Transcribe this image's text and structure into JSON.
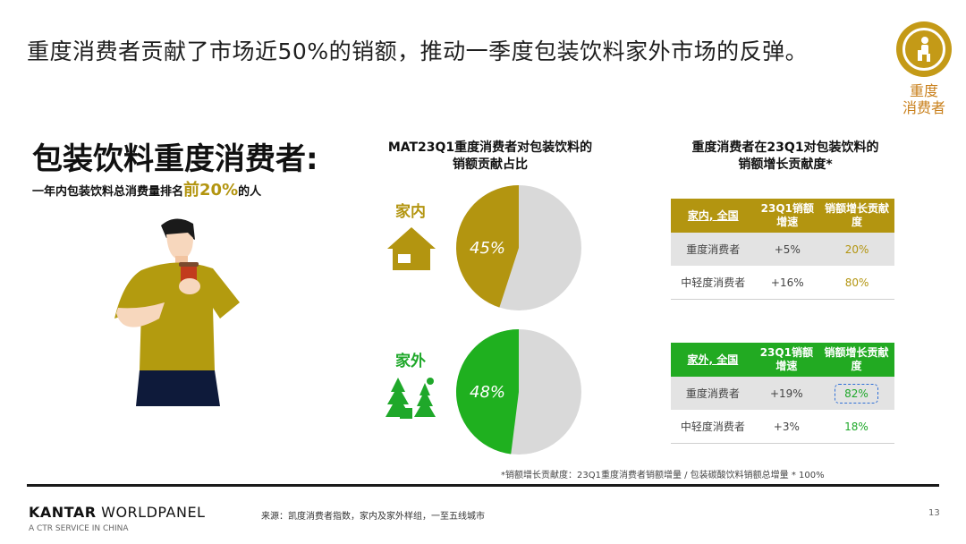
{
  "headline": "重度消费者贡献了市场近50%的销额，推动一季度包装饮料家外市场的反弹。",
  "badge": {
    "icon": "person-seated-icon",
    "label_line1": "重度",
    "label_line2": "消费者",
    "color": "#c49a17"
  },
  "left": {
    "title": "包装饮料重度消费者:",
    "subtitle_pre": "一年内包装饮料总消费量排名",
    "subtitle_highlight": "前20%",
    "subtitle_post": "的人",
    "illustration": "person-drinking-illustration"
  },
  "middle": {
    "title_line1": "MAT23Q1重度消费者对包装饮料的",
    "title_line2": "销额贡献占比",
    "home": {
      "label": "家内",
      "icon": "house-icon",
      "pct_label": "45%",
      "share": 45,
      "color": "#b39510"
    },
    "out": {
      "label": "家外",
      "icon": "outdoor-trees-icon",
      "pct_label": "48%",
      "share": 48,
      "color": "#1fb01f"
    },
    "pie_rest_color": "#d9d9d9"
  },
  "right": {
    "title_line1": "重度消费者在23Q1对包装饮料的",
    "title_line2": "销额增长贡献度*",
    "home_table": {
      "header": [
        "家内, 全国",
        "23Q1销额增速",
        "销额增长贡献度"
      ],
      "header_color": "#b39510",
      "rows": [
        {
          "name": "重度消费者",
          "growth": "+5%",
          "contrib": "20%"
        },
        {
          "name": "中轻度消费者",
          "growth": "+16%",
          "contrib": "80%"
        }
      ]
    },
    "out_table": {
      "header": [
        "家外, 全国",
        "23Q1销额增速",
        "销额增长贡献度"
      ],
      "header_color": "#22aa22",
      "rows": [
        {
          "name": "重度消费者",
          "growth": "+19%",
          "contrib": "82%"
        },
        {
          "name": "中轻度消费者",
          "growth": "+3%",
          "contrib": "18%"
        }
      ]
    }
  },
  "footnote": "*销额增长贡献度：23Q1重度消费者销额增量 / 包装碳酸饮料销额总增量 * 100%",
  "footer": {
    "brand_bold": "KANTAR",
    "brand_rest": " WORLDPANEL",
    "brand_sub": "A CTR SERVICE IN CHINA",
    "source": "来源：凯度消费者指数，家内及家外样组，一至五线城市",
    "page": "13"
  }
}
